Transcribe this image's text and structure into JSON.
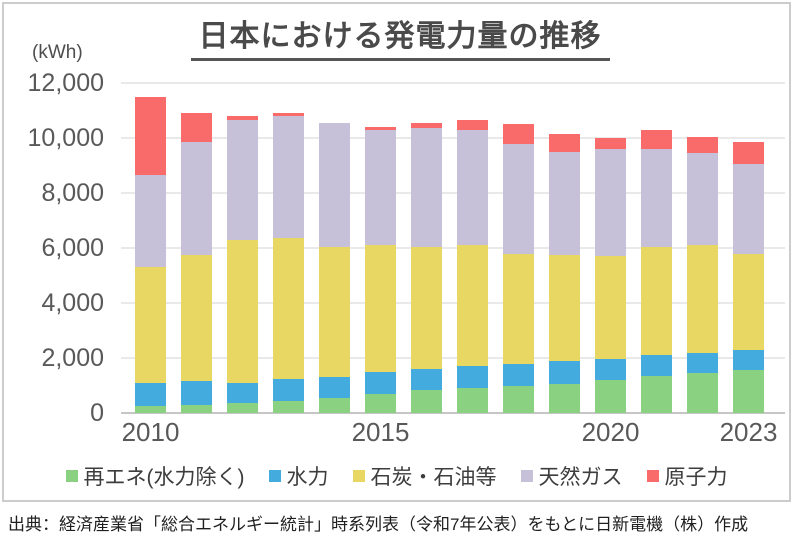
{
  "page": {
    "title": "日本における発電力量の推移",
    "unit_label": "(kWh)",
    "source": "出典：経済産業省「総合エネルギー統計」時系列表（令和7年公表）をもとに日新電機（株）作成"
  },
  "chart_data": {
    "type": "bar",
    "stacked": true,
    "title": "日本における発電力量の推移",
    "ylabel": "(kWh)",
    "xlabel": "",
    "ylim": [
      0,
      12000
    ],
    "ytick_step": 2000,
    "yticks": [
      "0",
      "2,000",
      "4,000",
      "6,000",
      "8,000",
      "10,000",
      "12,000"
    ],
    "grid": true,
    "legend_position": "bottom",
    "categories": [
      2010,
      2011,
      2012,
      2013,
      2014,
      2015,
      2016,
      2017,
      2018,
      2019,
      2020,
      2021,
      2022,
      2023
    ],
    "xticks": [
      {
        "label": "2010",
        "index": 0
      },
      {
        "label": "2015",
        "index": 5
      },
      {
        "label": "2020",
        "index": 10
      },
      {
        "label": "2023",
        "index": 13
      }
    ],
    "series": [
      {
        "name": "再エネ(水力除く)",
        "color": "#8bd182",
        "values": [
          250,
          300,
          350,
          450,
          550,
          700,
          850,
          900,
          1000,
          1050,
          1200,
          1350,
          1450,
          1550
        ]
      },
      {
        "name": "水力",
        "color": "#44abdf",
        "values": [
          850,
          850,
          750,
          800,
          750,
          800,
          750,
          800,
          800,
          850,
          750,
          750,
          750,
          750
        ]
      },
      {
        "name": "石炭・石油等",
        "color": "#e8d763",
        "values": [
          4200,
          4600,
          5200,
          5100,
          4750,
          4600,
          4450,
          4400,
          4000,
          3850,
          3750,
          3950,
          3900,
          3500
        ]
      },
      {
        "name": "天然ガス",
        "color": "#c6c0d8",
        "values": [
          3350,
          4100,
          4350,
          4450,
          4500,
          4200,
          4300,
          4200,
          4000,
          3750,
          3900,
          3550,
          3350,
          3250
        ]
      },
      {
        "name": "原子力",
        "color": "#f96b6b",
        "values": [
          2850,
          1050,
          150,
          100,
          0,
          100,
          200,
          350,
          700,
          650,
          400,
          700,
          600,
          800
        ]
      }
    ],
    "totals": [
      11500,
      10900,
      10800,
      10900,
      10550,
      10400,
      10550,
      10650,
      10500,
      10150,
      10000,
      10300,
      10050,
      9850
    ]
  }
}
